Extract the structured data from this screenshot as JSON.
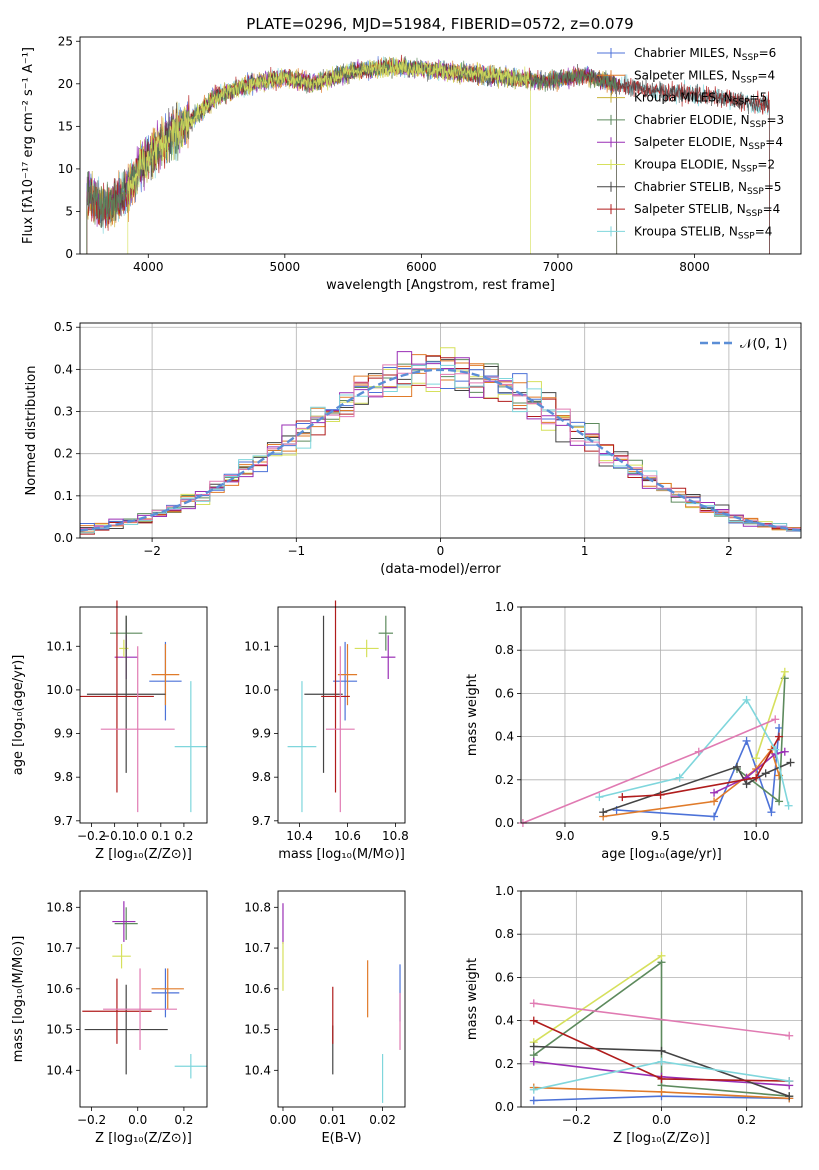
{
  "figure": {
    "title": "PLATE=0296, MJD=51984, FIBERID=0572, z=0.079"
  },
  "colors": {
    "models": [
      "#4c72d8",
      "#e07b2a",
      "#c8b23a",
      "#5d8a5d",
      "#9a2fb5",
      "#d6e05c",
      "#444444",
      "#b01c1c",
      "#7fd6dc"
    ],
    "pink": "#e07ab2",
    "gauss": "#5b8ed6",
    "grid": "#b0b0b0"
  },
  "chart_data": [
    {
      "id": "spectrum",
      "type": "line",
      "title": "PLATE=0296, MJD=51984, FIBERID=0572, z=0.079",
      "xlabel": "wavelength [Angstrom, rest frame]",
      "ylabel": "Flux [fλ10⁻¹⁷ erg cm⁻² s⁻¹ A⁻¹]",
      "xlim": [
        3500,
        8780
      ],
      "ylim": [
        0,
        25.5
      ],
      "xticks": [
        4000,
        5000,
        6000,
        7000,
        8000
      ],
      "yticks": [
        0,
        5,
        10,
        15,
        20,
        25
      ],
      "grid": false,
      "legend_position": "right",
      "legend": [
        {
          "label": "Chabrier MILES, N",
          "sub": "SSP",
          "tail": "=6"
        },
        {
          "label": "Salpeter MILES, N",
          "sub": "SSP",
          "tail": "=4"
        },
        {
          "label": "Kroupa MILES, N",
          "sub": "SSP",
          "tail": "=5"
        },
        {
          "label": "Chabrier ELODIE, N",
          "sub": "SSP",
          "tail": "=3"
        },
        {
          "label": "Salpeter ELODIE, N",
          "sub": "SSP",
          "tail": "=4"
        },
        {
          "label": "Kroupa ELODIE, N",
          "sub": "SSP",
          "tail": "=2"
        },
        {
          "label": "Chabrier STELIB, N",
          "sub": "SSP",
          "tail": "=5"
        },
        {
          "label": "Salpeter STELIB, N",
          "sub": "SSP",
          "tail": "=4"
        },
        {
          "label": "Kroupa STELIB, N",
          "sub": "SSP",
          "tail": "=4"
        }
      ],
      "continuum": [
        [
          3550,
          7.0
        ],
        [
          3700,
          5.5
        ],
        [
          3850,
          7.5
        ],
        [
          3950,
          10.5
        ],
        [
          4100,
          13.0
        ],
        [
          4300,
          15.5
        ],
        [
          4500,
          18.5
        ],
        [
          4750,
          20.0
        ],
        [
          5000,
          20.8
        ],
        [
          5200,
          20.0
        ],
        [
          5500,
          21.5
        ],
        [
          5800,
          22.0
        ],
        [
          6000,
          21.8
        ],
        [
          6300,
          21.3
        ],
        [
          6600,
          20.8
        ],
        [
          6900,
          20.3
        ],
        [
          7200,
          21.0
        ],
        [
          7400,
          20.0
        ],
        [
          7700,
          19.2
        ],
        [
          8000,
          18.8
        ],
        [
          8300,
          18.0
        ],
        [
          8550,
          17.5
        ]
      ],
      "model_ranges": [
        {
          "start": 3550,
          "end": 7430
        },
        {
          "start": 3550,
          "end": 7430
        },
        {
          "start": 3550,
          "end": 7430
        },
        {
          "start": 3550,
          "end": 7430
        },
        {
          "start": 3550,
          "end": 7430
        },
        {
          "start": 3850,
          "end": 6800
        },
        {
          "start": 3550,
          "end": 8550
        },
        {
          "start": 3550,
          "end": 8550
        },
        {
          "start": 3550,
          "end": 8550
        }
      ]
    },
    {
      "id": "residuals",
      "type": "step",
      "xlabel": "(data-model)/error",
      "ylabel": "Normed distribution",
      "xlim": [
        -2.5,
        2.5
      ],
      "ylim": [
        0,
        0.51
      ],
      "xticks": [
        -2,
        -1,
        0,
        1,
        2
      ],
      "yticks": [
        0.0,
        0.1,
        0.2,
        0.3,
        0.4,
        0.5
      ],
      "grid": true,
      "legend_position": "upper right",
      "gauss_label": "𝒩(0, 1)",
      "bin_width": 0.1
    },
    {
      "id": "age-vs-Z",
      "type": "errorbar",
      "xlabel": "Z [log₁₀(Z/Z⊙)]",
      "ylabel": "age  [log₁₀(age/yr)]",
      "xlim": [
        -0.25,
        0.3
      ],
      "ylim": [
        9.695,
        10.19
      ],
      "xticks": [
        -0.2,
        -0.1,
        0.0,
        0.1,
        0.2
      ],
      "yticks": [
        9.7,
        9.8,
        9.9,
        10.0,
        10.1
      ],
      "points": [
        {
          "x": 0.12,
          "y": 10.02,
          "xerr": 0.07,
          "yerr": 0.09,
          "color": "#4c72d8"
        },
        {
          "x": 0.12,
          "y": 10.035,
          "xerr": 0.06,
          "yerr": 0.07,
          "color": "#e07b2a"
        },
        {
          "x": -0.05,
          "y": 10.13,
          "xerr": 0.07,
          "yerr": 0.04,
          "color": "#5d8a5d"
        },
        {
          "x": -0.05,
          "y": 10.075,
          "xerr": 0.05,
          "yerr": 0.05,
          "color": "#9a2fb5"
        },
        {
          "x": -0.06,
          "y": 10.095,
          "xerr": 0.02,
          "yerr": 0.02,
          "color": "#d6e05c"
        },
        {
          "x": -0.05,
          "y": 9.99,
          "xerr": 0.17,
          "yerr": 0.18,
          "color": "#444444"
        },
        {
          "x": -0.09,
          "y": 9.985,
          "xerr": 0.16,
          "yerr": 0.22,
          "color": "#b01c1c"
        },
        {
          "x": 0.23,
          "y": 9.87,
          "xerr": 0.07,
          "yerr": 0.15,
          "color": "#7fd6dc"
        },
        {
          "x": 0.0,
          "y": 9.91,
          "xerr": 0.16,
          "yerr": 0.19,
          "color": "#e07ab2"
        }
      ]
    },
    {
      "id": "age-vs-mass",
      "type": "errorbar",
      "xlabel": "mass [log₁₀(M/M⊙)]",
      "ylabel": "",
      "xlim": [
        10.31,
        10.84
      ],
      "ylim": [
        9.695,
        10.19
      ],
      "xticks": [
        10.4,
        10.6,
        10.8
      ],
      "yticks": [
        9.7,
        9.8,
        9.9,
        10.0,
        10.1
      ],
      "points": [
        {
          "x": 10.59,
          "y": 10.02,
          "xerr": 0.05,
          "yerr": 0.09,
          "color": "#4c72d8"
        },
        {
          "x": 10.6,
          "y": 10.035,
          "xerr": 0.04,
          "yerr": 0.07,
          "color": "#e07b2a"
        },
        {
          "x": 10.76,
          "y": 10.13,
          "xerr": 0.03,
          "yerr": 0.04,
          "color": "#5d8a5d"
        },
        {
          "x": 10.77,
          "y": 10.075,
          "xerr": 0.03,
          "yerr": 0.05,
          "color": "#9a2fb5"
        },
        {
          "x": 10.68,
          "y": 10.095,
          "xerr": 0.05,
          "yerr": 0.02,
          "color": "#d6e05c"
        },
        {
          "x": 10.5,
          "y": 9.99,
          "xerr": 0.08,
          "yerr": 0.18,
          "color": "#444444"
        },
        {
          "x": 10.55,
          "y": 9.985,
          "xerr": 0.06,
          "yerr": 0.22,
          "color": "#b01c1c"
        },
        {
          "x": 10.41,
          "y": 9.87,
          "xerr": 0.06,
          "yerr": 0.15,
          "color": "#7fd6dc"
        },
        {
          "x": 10.57,
          "y": 9.91,
          "xerr": 0.06,
          "yerr": 0.19,
          "color": "#e07ab2"
        }
      ]
    },
    {
      "id": "weight-vs-age",
      "type": "line",
      "xlabel": "age  [log₁₀(age/yr)]",
      "ylabel": "mass weight",
      "xlim": [
        8.77,
        10.24
      ],
      "ylim": [
        0,
        1.0
      ],
      "xticks": [
        9.0,
        9.5,
        10.0
      ],
      "yticks": [
        0.0,
        0.2,
        0.4,
        0.6,
        0.8,
        1.0
      ],
      "grid": true,
      "series": [
        {
          "color": "#4c72d8",
          "points": [
            [
              9.27,
              0.06
            ],
            [
              9.78,
              0.03
            ],
            [
              9.95,
              0.38
            ],
            [
              10.08,
              0.05
            ],
            [
              10.12,
              0.44
            ]
          ]
        },
        {
          "color": "#e07b2a",
          "points": [
            [
              9.2,
              0.03
            ],
            [
              9.78,
              0.1
            ],
            [
              10.0,
              0.25
            ],
            [
              10.08,
              0.34
            ],
            [
              10.12,
              0.22
            ]
          ]
        },
        {
          "color": "#5d8a5d",
          "points": [
            [
              9.9,
              0.25
            ],
            [
              10.12,
              0.1
            ],
            [
              10.15,
              0.67
            ]
          ]
        },
        {
          "color": "#9a2fb5",
          "points": [
            [
              9.78,
              0.14
            ],
            [
              9.95,
              0.21
            ],
            [
              10.1,
              0.32
            ],
            [
              10.15,
              0.33
            ]
          ]
        },
        {
          "color": "#d6e05c",
          "points": [
            [
              10.0,
              0.3
            ],
            [
              10.15,
              0.7
            ]
          ]
        },
        {
          "color": "#444444",
          "points": [
            [
              9.2,
              0.05
            ],
            [
              9.9,
              0.26
            ],
            [
              9.95,
              0.18
            ],
            [
              10.05,
              0.23
            ],
            [
              10.18,
              0.28
            ]
          ]
        },
        {
          "color": "#b01c1c",
          "points": [
            [
              9.3,
              0.12
            ],
            [
              9.5,
              0.13
            ],
            [
              10.0,
              0.21
            ],
            [
              10.12,
              0.4
            ]
          ]
        },
        {
          "color": "#7fd6dc",
          "points": [
            [
              9.18,
              0.12
            ],
            [
              9.6,
              0.21
            ],
            [
              9.95,
              0.57
            ],
            [
              10.1,
              0.34
            ],
            [
              10.17,
              0.08
            ]
          ]
        },
        {
          "color": "#e07ab2",
          "points": [
            [
              8.78,
              0.0
            ],
            [
              9.7,
              0.33
            ],
            [
              10.1,
              0.48
            ]
          ]
        }
      ]
    },
    {
      "id": "mass-vs-Z",
      "type": "errorbar",
      "xlabel": "Z [log₁₀(Z/Z⊙)]",
      "ylabel": "mass [log₁₀(M/M⊙)]",
      "xlim": [
        -0.25,
        0.3
      ],
      "ylim": [
        10.31,
        10.84
      ],
      "xticks": [
        -0.2,
        0.0,
        0.2
      ],
      "yticks": [
        10.4,
        10.5,
        10.6,
        10.7,
        10.8
      ],
      "points": [
        {
          "x": 0.12,
          "y": 10.59,
          "xerr": 0.06,
          "yerr": 0.06,
          "color": "#4c72d8"
        },
        {
          "x": 0.13,
          "y": 10.6,
          "xerr": 0.07,
          "yerr": 0.05,
          "color": "#e07b2a"
        },
        {
          "x": -0.05,
          "y": 10.76,
          "xerr": 0.05,
          "yerr": 0.04,
          "color": "#5d8a5d"
        },
        {
          "x": -0.06,
          "y": 10.765,
          "xerr": 0.05,
          "yerr": 0.05,
          "color": "#9a2fb5"
        },
        {
          "x": -0.07,
          "y": 10.68,
          "xerr": 0.04,
          "yerr": 0.03,
          "color": "#d6e05c"
        },
        {
          "x": -0.05,
          "y": 10.5,
          "xerr": 0.18,
          "yerr": 0.11,
          "color": "#444444"
        },
        {
          "x": -0.09,
          "y": 10.545,
          "xerr": 0.15,
          "yerr": 0.08,
          "color": "#b01c1c"
        },
        {
          "x": 0.23,
          "y": 10.41,
          "xerr": 0.07,
          "yerr": 0.03,
          "color": "#7fd6dc"
        },
        {
          "x": 0.01,
          "y": 10.55,
          "xerr": 0.16,
          "yerr": 0.1,
          "color": "#e07ab2"
        }
      ]
    },
    {
      "id": "mass-vs-EBV",
      "type": "errorbar",
      "xlabel": "E(B-V)",
      "ylabel": "",
      "xlim": [
        -0.001,
        0.0245
      ],
      "ylim": [
        10.31,
        10.84
      ],
      "xticks": [
        0.0,
        0.01,
        0.02
      ],
      "yticks": [
        10.4,
        10.5,
        10.6,
        10.7,
        10.8
      ],
      "points": [
        {
          "x": 0.0235,
          "y": 10.59,
          "xerr": 0,
          "yerr": 0.07,
          "color": "#4c72d8"
        },
        {
          "x": 0.017,
          "y": 10.6,
          "xerr": 0,
          "yerr": 0.07,
          "color": "#e07b2a"
        },
        {
          "x": 0.0,
          "y": 10.76,
          "xerr": 0,
          "yerr": 0.05,
          "color": "#9a2fb5"
        },
        {
          "x": 0.0,
          "y": 10.655,
          "xerr": 0,
          "yerr": 0.06,
          "color": "#d6e05c"
        },
        {
          "x": 0.01,
          "y": 10.45,
          "xerr": 0,
          "yerr": 0.06,
          "color": "#444444"
        },
        {
          "x": 0.01,
          "y": 10.535,
          "xerr": 0,
          "yerr": 0.07,
          "color": "#b01c1c"
        },
        {
          "x": 0.02,
          "y": 10.38,
          "xerr": 0,
          "yerr": 0.06,
          "color": "#7fd6dc"
        },
        {
          "x": 0.0235,
          "y": 10.52,
          "xerr": 0,
          "yerr": 0.07,
          "color": "#e07ab2"
        }
      ]
    },
    {
      "id": "weight-vs-Z",
      "type": "line",
      "xlabel": "Z [log₁₀(Z/Z⊙)]",
      "ylabel": "mass weight",
      "xlim": [
        -0.33,
        0.33
      ],
      "ylim": [
        0,
        1.0
      ],
      "xticks": [
        -0.2,
        0.0,
        0.2
      ],
      "yticks": [
        0.0,
        0.2,
        0.4,
        0.6,
        0.8,
        1.0
      ],
      "grid": true,
      "series": [
        {
          "color": "#4c72d8",
          "points": [
            [
              -0.3,
              0.03
            ],
            [
              0.0,
              0.05
            ],
            [
              0.3,
              0.04
            ]
          ]
        },
        {
          "color": "#e07b2a",
          "points": [
            [
              -0.3,
              0.09
            ],
            [
              0.0,
              0.07
            ],
            [
              0.3,
              0.04
            ]
          ]
        },
        {
          "color": "#5d8a5d",
          "points": [
            [
              -0.3,
              0.24
            ],
            [
              0.0,
              0.67
            ],
            [
              0.0,
              0.1
            ],
            [
              0.3,
              0.05
            ]
          ]
        },
        {
          "color": "#9a2fb5",
          "points": [
            [
              -0.3,
              0.21
            ],
            [
              0.0,
              0.14
            ],
            [
              0.3,
              0.1
            ]
          ]
        },
        {
          "color": "#d6e05c",
          "points": [
            [
              -0.3,
              0.3
            ],
            [
              0.0,
              0.7
            ]
          ]
        },
        {
          "color": "#444444",
          "points": [
            [
              -0.3,
              0.28
            ],
            [
              0.0,
              0.26
            ],
            [
              0.3,
              0.05
            ]
          ]
        },
        {
          "color": "#b01c1c",
          "points": [
            [
              -0.3,
              0.4
            ],
            [
              0.0,
              0.13
            ],
            [
              0.3,
              0.12
            ]
          ]
        },
        {
          "color": "#7fd6dc",
          "points": [
            [
              -0.3,
              0.08
            ],
            [
              0.0,
              0.21
            ],
            [
              0.3,
              0.12
            ]
          ]
        },
        {
          "color": "#e07ab2",
          "points": [
            [
              -0.3,
              0.48
            ],
            [
              0.3,
              0.33
            ]
          ]
        }
      ]
    }
  ]
}
